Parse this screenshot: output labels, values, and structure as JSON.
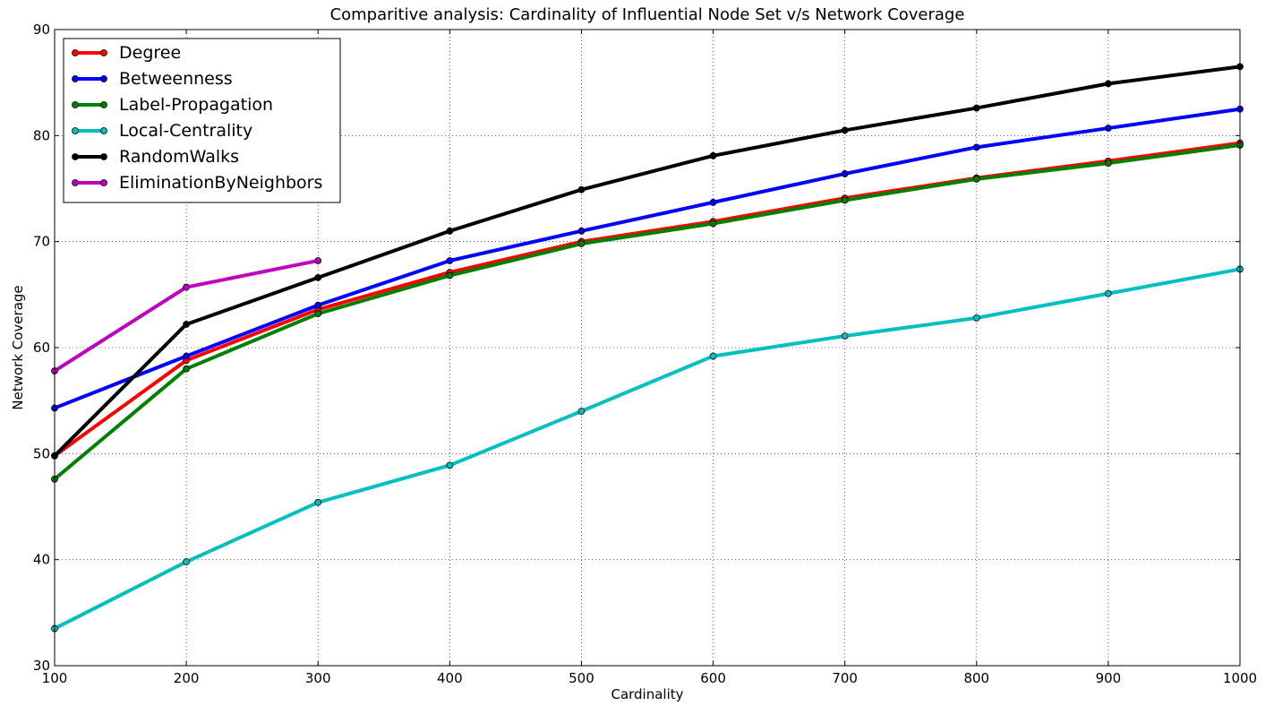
{
  "chart_data": {
    "type": "line",
    "title": "Comparitive analysis: Cardinality of Influential Node Set v/s Network Coverage",
    "xlabel": "Cardinality",
    "ylabel": "Network Coverage",
    "xlim": [
      100,
      1000
    ],
    "ylim": [
      30,
      90
    ],
    "xticks": [
      100,
      200,
      300,
      400,
      500,
      600,
      700,
      800,
      900,
      1000
    ],
    "yticks": [
      30,
      40,
      50,
      60,
      70,
      80,
      90
    ],
    "grid": true,
    "legend_position": "top-left",
    "series": [
      {
        "name": "Degree",
        "color": "#ff0000",
        "x": [
          100,
          200,
          300,
          400,
          500,
          600,
          700,
          800,
          900,
          1000
        ],
        "values": [
          49.8,
          58.8,
          63.6,
          67.1,
          70.0,
          71.9,
          74.1,
          76.0,
          77.6,
          79.3
        ]
      },
      {
        "name": "Betweenness",
        "color": "#0000ff",
        "x": [
          100,
          200,
          300,
          400,
          500,
          600,
          700,
          800,
          900,
          1000
        ],
        "values": [
          54.3,
          59.2,
          64.0,
          68.2,
          71.0,
          73.7,
          76.4,
          78.9,
          80.7,
          82.5
        ]
      },
      {
        "name": "Label-Propagation",
        "color": "#008000",
        "x": [
          100,
          200,
          300,
          400,
          500,
          600,
          700,
          800,
          900,
          1000
        ],
        "values": [
          47.6,
          58.0,
          63.2,
          66.8,
          69.8,
          71.7,
          73.9,
          75.9,
          77.4,
          79.1
        ]
      },
      {
        "name": "Local-Centrality",
        "color": "#00bfbf",
        "x": [
          100,
          200,
          300,
          400,
          500,
          600,
          700,
          800,
          900,
          1000
        ],
        "values": [
          33.5,
          39.8,
          45.4,
          48.9,
          54.0,
          59.2,
          61.1,
          62.8,
          65.1,
          67.4
        ]
      },
      {
        "name": "RandomWalks",
        "color": "#000000",
        "x": [
          100,
          200,
          300,
          400,
          500,
          600,
          700,
          800,
          900,
          1000
        ],
        "values": [
          49.8,
          62.2,
          66.6,
          71.0,
          74.9,
          78.1,
          80.5,
          82.6,
          84.9,
          86.5
        ]
      },
      {
        "name": "EliminationByNeighbors",
        "color": "#bf00bf",
        "x": [
          100,
          200,
          300
        ],
        "values": [
          57.8,
          65.7,
          68.2
        ]
      }
    ]
  }
}
